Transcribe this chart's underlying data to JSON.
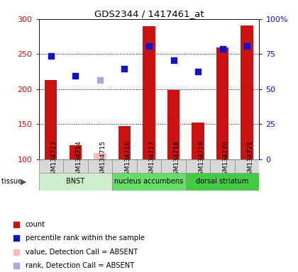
{
  "title": "GDS2344 / 1417461_at",
  "samples": [
    "GSM134713",
    "GSM134714",
    "GSM134715",
    "GSM134716",
    "GSM134717",
    "GSM134718",
    "GSM134719",
    "GSM134720",
    "GSM134721"
  ],
  "count_values": [
    213,
    120,
    null,
    147,
    290,
    199,
    152,
    259,
    291
  ],
  "count_absent": [
    null,
    null,
    109,
    null,
    null,
    null,
    null,
    null,
    null
  ],
  "percentile_values": [
    247,
    219,
    null,
    229,
    261,
    241,
    225,
    257,
    261
  ],
  "percentile_absent": [
    null,
    null,
    213,
    null,
    null,
    null,
    null,
    null,
    null
  ],
  "ylim_left": [
    100,
    300
  ],
  "ylim_right": [
    0,
    100
  ],
  "left_ticks": [
    100,
    150,
    200,
    250,
    300
  ],
  "right_ticks": [
    0,
    25,
    50,
    75,
    100
  ],
  "right_tick_labels": [
    "0",
    "25",
    "50",
    "75",
    "100%"
  ],
  "tissue_groups": [
    {
      "label": "BNST",
      "start": 0,
      "end": 3,
      "color": "#cceecc"
    },
    {
      "label": "nucleus accumbens",
      "start": 3,
      "end": 6,
      "color": "#66dd66"
    },
    {
      "label": "dorsal striatum",
      "start": 6,
      "end": 9,
      "color": "#44cc44"
    }
  ],
  "bar_color": "#cc1111",
  "bar_absent_color": "#ffbbbb",
  "dot_color": "#1111cc",
  "dot_absent_color": "#aaaadd",
  "bar_width": 0.5,
  "dot_size": 35,
  "legend_items": [
    {
      "color": "#cc1111",
      "label": "count"
    },
    {
      "color": "#1111cc",
      "label": "percentile rank within the sample"
    },
    {
      "color": "#ffbbbb",
      "label": "value, Detection Call = ABSENT"
    },
    {
      "color": "#aaaadd",
      "label": "rank, Detection Call = ABSENT"
    }
  ],
  "background_color": "#ffffff",
  "plot_bg_color": "#ffffff",
  "left_tick_color": "#cc1111",
  "right_tick_color": "#1111cc",
  "figsize": [
    4.2,
    3.84
  ],
  "dpi": 100
}
